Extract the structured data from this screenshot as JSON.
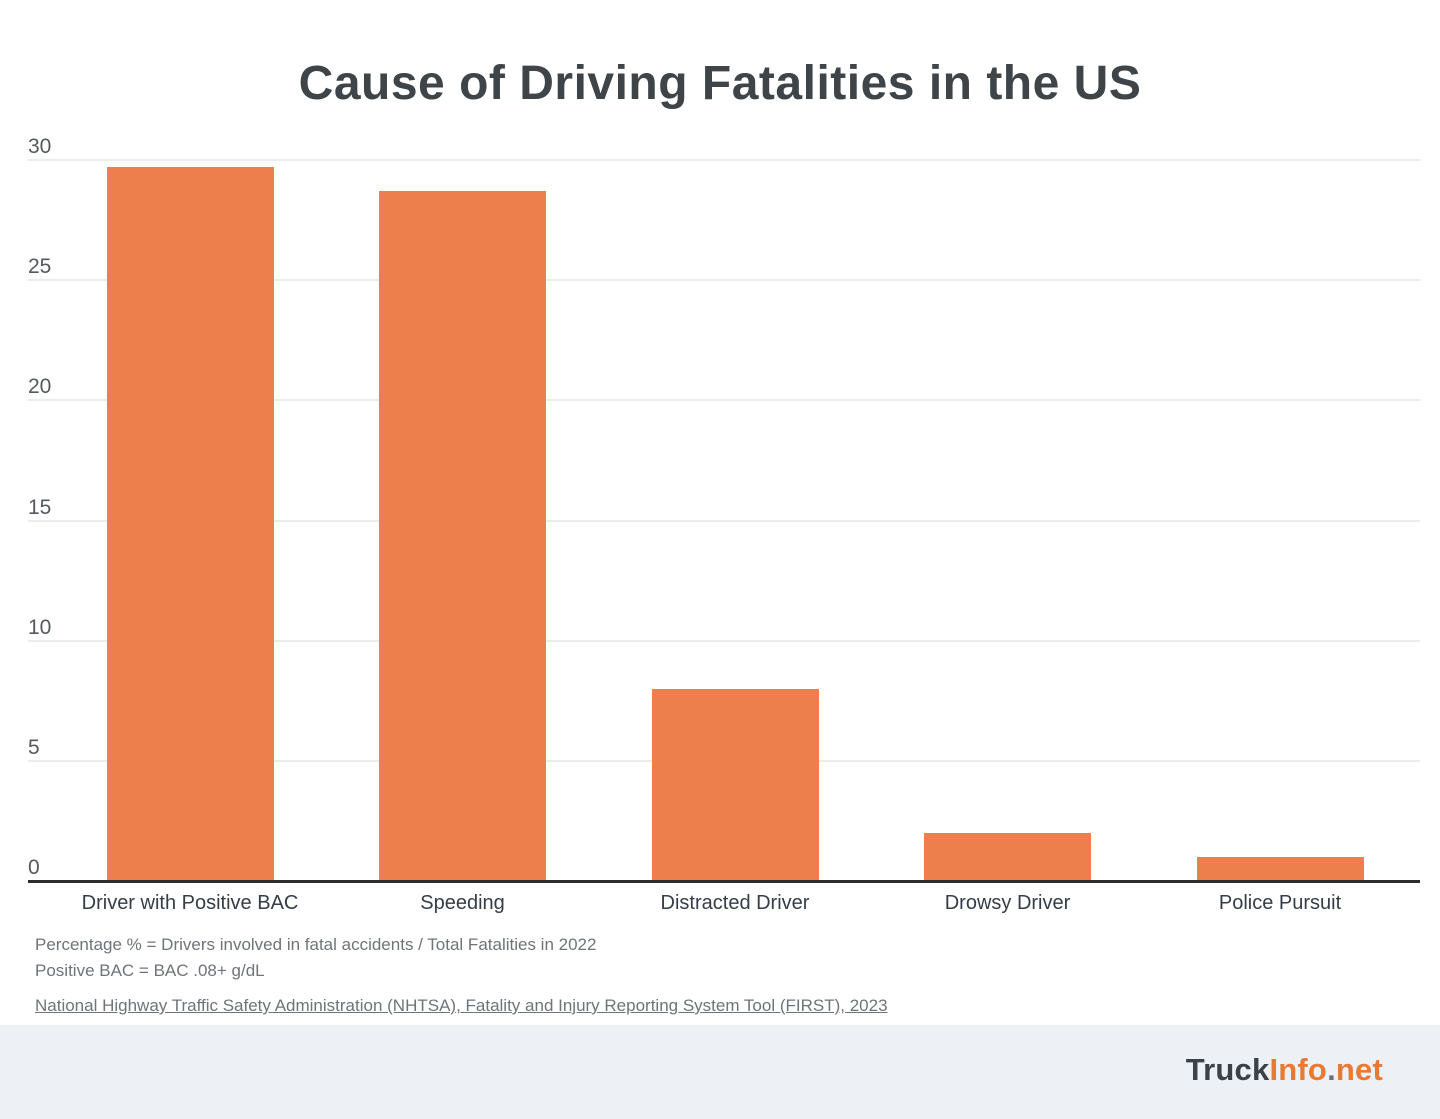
{
  "chart_data": {
    "type": "bar",
    "title": "Cause of Driving Fatalities in the US",
    "categories": [
      "Driver with Positive BAC",
      "Speeding",
      "Distracted Driver",
      "Drowsy Driver",
      "Police Pursuit"
    ],
    "values": [
      29.7,
      28.7,
      8.0,
      2.0,
      1.0
    ],
    "value_unit": "percent",
    "xlabel": "",
    "ylabel": "",
    "ylim": [
      0,
      30
    ],
    "yticks": [
      0,
      5,
      10,
      15,
      20,
      25,
      30
    ],
    "grid": "horizontal-light",
    "legend": "none",
    "bar_color": "#EC7F4B"
  },
  "notes": {
    "line1": "Percentage % = Drivers involved in fatal accidents / Total Fatalities in 2022",
    "line2": "Positive BAC = BAC .08+ g/dL",
    "source": "National Highway Traffic Safety Administration (NHTSA), Fatality and Injury Reporting System Tool (FIRST), 2023"
  },
  "footer": {
    "logo": {
      "part1": "Truck",
      "part2": "Info",
      "dot": ".",
      "part3": "net"
    }
  },
  "colors": {
    "bar": "#EC7F4B",
    "title_text": "#3E4448",
    "axis_line": "#2D2D2D",
    "gridline": "#ECECEC",
    "tick_text": "#55595E",
    "category_text": "#353D47",
    "note_text": "#6F747A",
    "footer_background": "#EDF1F5",
    "logo_dark": "#3A4149",
    "logo_orange": "#E87A33"
  }
}
